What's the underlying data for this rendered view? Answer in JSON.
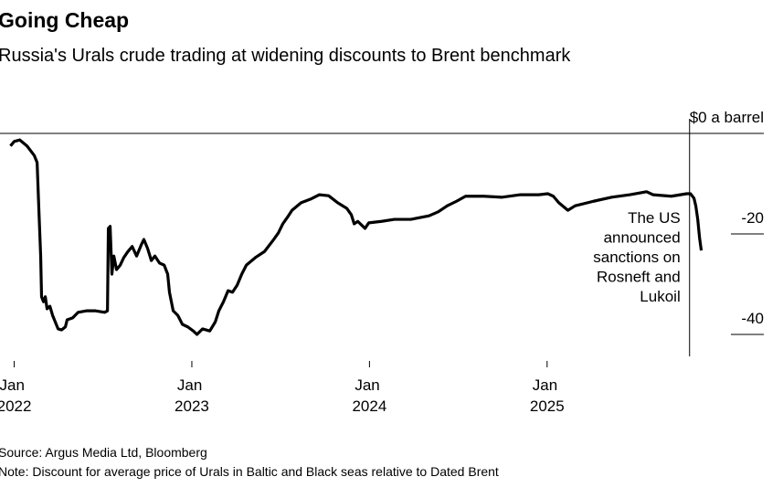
{
  "chart_data": {
    "type": "line",
    "title": "Going Cheap",
    "subtitle": "Russia's Urals crude trading at widening discounts to Brent benchmark",
    "source": "Source: Argus Media Ltd, Bloomberg",
    "note": "Note: Discount for average price of Urals in Baltic and Black seas relative to Dated Brent",
    "xlim": [
      2021.92,
      2026.22
    ],
    "ylim": [
      -40,
      0
    ],
    "yticks": [
      {
        "value": 0,
        "label": "$0 a barrel"
      },
      -20,
      -40
    ],
    "xticks": [
      {
        "value": 2022,
        "label": "Jan 2022"
      },
      {
        "value": 2023,
        "label": "Jan 2023"
      },
      {
        "value": 2024,
        "label": "Jan 2024"
      },
      {
        "value": 2025,
        "label": "Jan 2025"
      }
    ],
    "annotation": {
      "x": 2025.802,
      "lines": [
        "The US",
        "announced",
        "sanctions on",
        "Rosneft and",
        "Lukoil"
      ]
    },
    "series": [
      {
        "color": "#000000",
        "x": [
          2021.979,
          2022.0,
          2022.031,
          2022.072,
          2022.113,
          2022.129,
          2022.139,
          2022.149,
          2022.154,
          2022.165,
          2022.175,
          2022.185,
          2022.201,
          2022.216,
          2022.231,
          2022.247,
          2022.267,
          2022.288,
          2022.298,
          2022.329,
          2022.36,
          2022.406,
          2022.458,
          2022.509,
          2022.525,
          2022.53,
          2022.54,
          2022.55,
          2022.561,
          2022.576,
          2022.597,
          2022.617,
          2022.638,
          2022.664,
          2022.689,
          2022.715,
          2022.73,
          2022.751,
          2022.772,
          2022.792,
          2022.818,
          2022.844,
          2022.864,
          2022.874,
          2022.895,
          2022.921,
          2022.947,
          2022.977,
          2023.008,
          2023.029,
          2023.06,
          2023.101,
          2023.132,
          2023.152,
          2023.178,
          2023.204,
          2023.229,
          2023.255,
          2023.281,
          2023.307,
          2023.358,
          2023.409,
          2023.461,
          2023.487,
          2023.512,
          2023.538,
          2023.564,
          2023.615,
          2023.667,
          2023.718,
          2023.77,
          2023.821,
          2023.872,
          2023.898,
          2023.914,
          2023.934,
          2023.975,
          2023.996,
          2024.068,
          2024.14,
          2024.233,
          2024.335,
          2024.387,
          2024.438,
          2024.49,
          2024.541,
          2024.644,
          2024.747,
          2024.85,
          2024.953,
          2025.004,
          2025.035,
          2025.066,
          2025.117,
          2025.158,
          2025.261,
          2025.364,
          2025.467,
          2025.56,
          2025.596,
          2025.699,
          2025.786,
          2025.807,
          2025.827,
          2025.837,
          2025.848,
          2025.858,
          2025.868
        ],
        "values": [
          -2.5,
          -1.6,
          -1.3,
          -2.5,
          -4.4,
          -5.8,
          -15.3,
          -24.4,
          -32.5,
          -33.5,
          -32.5,
          -34.9,
          -34.4,
          -36.2,
          -37.5,
          -38.9,
          -39.1,
          -38.5,
          -37.1,
          -36.7,
          -35.6,
          -35.3,
          -35.3,
          -35.6,
          -35.3,
          -18.9,
          -18.5,
          -28.0,
          -24.4,
          -27.1,
          -26.2,
          -24.7,
          -23.6,
          -22.5,
          -24.4,
          -22.2,
          -21.1,
          -22.9,
          -25.3,
          -24.4,
          -25.8,
          -26.2,
          -28.0,
          -31.6,
          -35.3,
          -36.2,
          -38.0,
          -38.5,
          -39.3,
          -40.0,
          -38.9,
          -39.3,
          -37.5,
          -35.3,
          -33.5,
          -31.3,
          -31.6,
          -30.2,
          -28.0,
          -26.2,
          -24.7,
          -23.5,
          -21.1,
          -19.8,
          -18.0,
          -16.7,
          -15.3,
          -13.8,
          -13.1,
          -12.2,
          -12.4,
          -13.8,
          -14.9,
          -16.2,
          -18.0,
          -17.5,
          -18.9,
          -17.8,
          -17.5,
          -17.1,
          -17.1,
          -16.4,
          -15.6,
          -14.4,
          -13.5,
          -12.5,
          -12.5,
          -12.7,
          -12.2,
          -12.2,
          -12.0,
          -12.5,
          -13.8,
          -15.3,
          -14.4,
          -13.5,
          -12.7,
          -12.2,
          -11.6,
          -12.2,
          -12.5,
          -12.0,
          -12.0,
          -12.9,
          -14.4,
          -17.1,
          -20.7,
          -23.3
        ]
      }
    ]
  }
}
